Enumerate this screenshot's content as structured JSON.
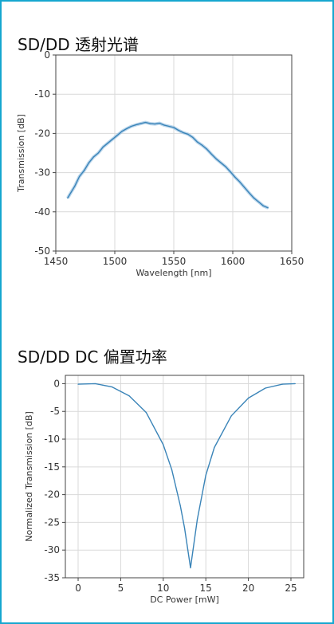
{
  "panels": {
    "top_title": "SD/DD 透射光谱",
    "bottom_title": "SD/DD DC 偏置功率"
  },
  "colors": {
    "border": "#16a7cf",
    "line": "#3a84b8",
    "band": "#9cc3e3",
    "grid": "#d9d9d9",
    "axis": "#444444"
  },
  "chart_data": [
    {
      "type": "line",
      "title": "SD/DD 透射光谱",
      "xlabel": "Wavelength [nm]",
      "ylabel": "Transmission [dB]",
      "xlim": [
        1450,
        1650
      ],
      "ylim": [
        -50,
        0
      ],
      "xticks": [
        1450,
        1500,
        1550,
        1600,
        1650
      ],
      "yticks": [
        0,
        -10,
        -20,
        -30,
        -40,
        -50
      ],
      "grid": true,
      "series": [
        {
          "x": [
            1460,
            1463,
            1466,
            1470,
            1474,
            1478,
            1482,
            1486,
            1490,
            1494,
            1498,
            1502,
            1506,
            1510,
            1514,
            1518,
            1522,
            1526,
            1530,
            1534,
            1538,
            1542,
            1546,
            1550,
            1554,
            1558,
            1562,
            1566,
            1570,
            1574,
            1578,
            1582,
            1586,
            1590,
            1594,
            1598,
            1602,
            1606,
            1610,
            1614,
            1618,
            1622,
            1626,
            1630
          ],
          "y": [
            -36.5,
            -35,
            -33.5,
            -31,
            -29.5,
            -27.5,
            -26,
            -25,
            -23.5,
            -22.5,
            -21.5,
            -20.5,
            -19.5,
            -18.8,
            -18.2,
            -17.8,
            -17.5,
            -17.2,
            -17.5,
            -17.6,
            -17.4,
            -17.9,
            -18.2,
            -18.5,
            -19.2,
            -19.8,
            -20.2,
            -21,
            -22.2,
            -23,
            -24,
            -25.3,
            -26.5,
            -27.5,
            -28.5,
            -29.8,
            -31.2,
            -32.4,
            -33.8,
            -35.2,
            -36.5,
            -37.5,
            -38.5,
            -39
          ]
        }
      ]
    },
    {
      "type": "line",
      "title": "SD/DD DC 偏置功率",
      "xlabel": "DC Power [mW]",
      "ylabel": "Normalized Transmission [dB]",
      "xlim": [
        -1.5,
        26.5
      ],
      "ylim": [
        -35,
        1.5
      ],
      "xticks": [
        0,
        5,
        10,
        15,
        20,
        25
      ],
      "yticks": [
        0,
        -5,
        -10,
        -15,
        -20,
        -25,
        -30,
        -35
      ],
      "grid": true,
      "series": [
        {
          "x": [
            0,
            2,
            4,
            6,
            8,
            10,
            11,
            12,
            12.5,
            13.2,
            14,
            15,
            16,
            18,
            20,
            22,
            24,
            25.5
          ],
          "y": [
            -0.1,
            0,
            -0.6,
            -2.2,
            -5.2,
            -11,
            -15.5,
            -22,
            -26,
            -33.2,
            -24.5,
            -16.5,
            -11.5,
            -5.8,
            -2.6,
            -0.8,
            -0.1,
            0
          ]
        }
      ]
    }
  ]
}
